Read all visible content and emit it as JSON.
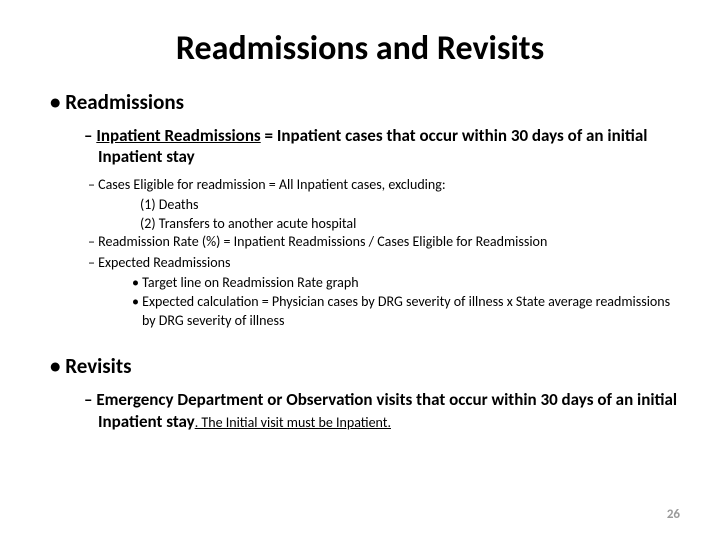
{
  "title": "Readmissions and Revisits",
  "section1": {
    "heading": "Readmissions",
    "defBold": {
      "termUnderlined": "Inpatient Readmissions",
      "rest": " = Inpatient cases that occur within 30 days of an initial Inpatient stay"
    },
    "eligible": "Cases Eligible for readmission = All Inpatient cases, excluding:",
    "eligibleItems": {
      "a": "(1)  Deaths",
      "b": "(2)  Transfers to another acute hospital"
    },
    "rate": "Readmission Rate (%) = Inpatient Readmissions / Cases Eligible for Readmission",
    "expectedHeading": "Expected Readmissions",
    "expectedItems": {
      "a": "Target line on Readmission Rate graph",
      "b": "Expected calculation = Physician cases by DRG severity of illness x State average readmissions by DRG severity of illness"
    }
  },
  "section2": {
    "heading": "Revisits",
    "line": {
      "boldPrefix": "Emergency Department or Observation ",
      "boldMid": "visits that occur within 30 days of an initial Inpatient stay",
      "trail": ". The Initial visit must be Inpatient."
    }
  },
  "pageNumber": "26"
}
